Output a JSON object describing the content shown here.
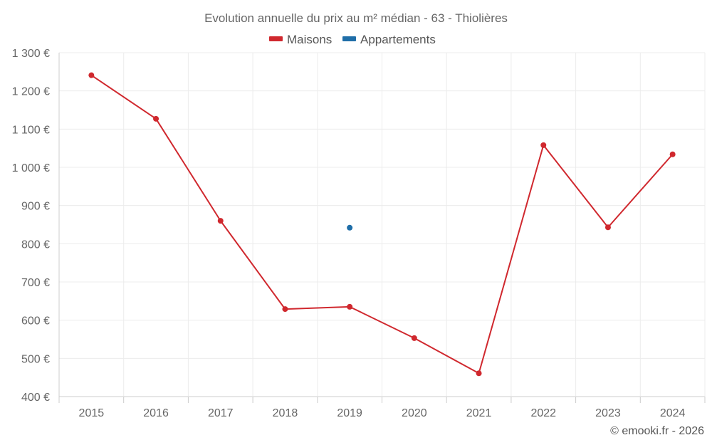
{
  "chart_data": {
    "type": "line",
    "title": "Evolution annuelle du prix au m² médian - 63 - Thiolières",
    "categories": [
      "2015",
      "2016",
      "2017",
      "2018",
      "2019",
      "2020",
      "2021",
      "2022",
      "2023",
      "2024"
    ],
    "series": [
      {
        "name": "Maisons",
        "color": "#d0282e",
        "values": [
          1241,
          1127,
          860,
          629,
          635,
          553,
          461,
          1058,
          843,
          1034
        ]
      },
      {
        "name": "Appartements",
        "color": "#1f6ea8",
        "values": [
          null,
          null,
          null,
          null,
          842,
          null,
          null,
          null,
          null,
          null
        ]
      }
    ],
    "y_ticks": [
      400,
      500,
      600,
      700,
      800,
      900,
      1000,
      1100,
      1200,
      1300
    ],
    "y_tick_labels": [
      "400 €",
      "500 €",
      "600 €",
      "700 €",
      "800 €",
      "900 €",
      "1 000 €",
      "1 100 €",
      "1 200 €",
      "1 300 €"
    ],
    "ylim": [
      400,
      1300
    ],
    "xlabel": "",
    "ylabel": "",
    "grid": true,
    "legend_position": "top-center"
  },
  "credit": "© emooki.fr - 2026"
}
